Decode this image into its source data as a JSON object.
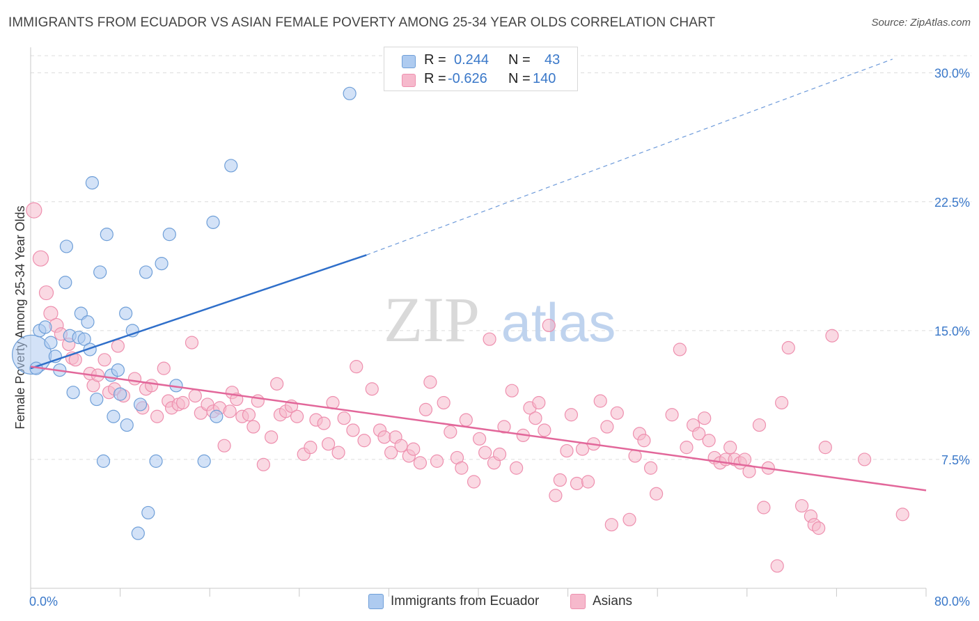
{
  "title": "IMMIGRANTS FROM ECUADOR VS ASIAN FEMALE POVERTY AMONG 25-34 YEAR OLDS CORRELATION CHART",
  "source": "Source: ZipAtlas.com",
  "watermark": {
    "zip": "ZIP",
    "atlas": "atlas"
  },
  "legend_top": {
    "rows": [
      {
        "r_label": "R =",
        "r_value": "0.244",
        "n_label": "N =",
        "n_value": "43",
        "color": "#aecbf0"
      },
      {
        "r_label": "R =",
        "r_value": "-0.626",
        "n_label": "N =",
        "n_value": "140",
        "color": "#f6b9cc"
      }
    ]
  },
  "legend_bottom": {
    "items": [
      {
        "label": "Immigrants from Ecuador",
        "color": "#aecbf0"
      },
      {
        "label": "Asians",
        "color": "#f6b9cc"
      }
    ]
  },
  "colors": {
    "blue_fill": "#aecbf0",
    "blue_stroke": "#6f9fd8",
    "blue_line": "#2f6fca",
    "pink_fill": "#f6b9cc",
    "pink_stroke": "#ee8fae",
    "pink_line": "#e2679a",
    "grid": "#dcdcdc",
    "axis_label": "#3a78c9"
  },
  "chart_data": {
    "type": "scatter",
    "title": "IMMIGRANTS FROM ECUADOR VS ASIAN FEMALE POVERTY AMONG 25-34 YEAR OLDS CORRELATION CHART",
    "xlabel": "",
    "ylabel": "Female Poverty Among 25-34 Year Olds",
    "xlim": [
      0,
      80
    ],
    "ylim": [
      0,
      31
    ],
    "x_tick_labels": [
      "0.0%",
      "80.0%"
    ],
    "y_ticks": [
      7.5,
      15.0,
      22.5,
      30.0
    ],
    "y_tick_labels": [
      "7.5%",
      "15.0%",
      "22.5%",
      "30.0%"
    ],
    "grid": "horizontal dashed",
    "series": [
      {
        "name": "Immigrants from Ecuador",
        "r": 0.244,
        "n": 43,
        "trend": {
          "x0": 0,
          "y0": 12.8,
          "x1": 30.0,
          "y1": 19.4,
          "dashed_to_x": 77.0,
          "dashed_to_y": 30.8
        },
        "points": [
          [
            0.1,
            13.6,
            28
          ],
          [
            0.5,
            12.8,
            9
          ],
          [
            0.8,
            15.0,
            9
          ],
          [
            1.3,
            15.2,
            9
          ],
          [
            1.8,
            14.3,
            9
          ],
          [
            2.2,
            13.5,
            9
          ],
          [
            2.6,
            12.7,
            9
          ],
          [
            3.1,
            17.8,
            9
          ],
          [
            3.2,
            19.9,
            9
          ],
          [
            3.5,
            14.7,
            9
          ],
          [
            3.8,
            11.4,
            9
          ],
          [
            4.3,
            14.6,
            9
          ],
          [
            4.5,
            16.0,
            9
          ],
          [
            4.8,
            14.5,
            9
          ],
          [
            5.1,
            15.5,
            9
          ],
          [
            5.3,
            13.9,
            9
          ],
          [
            5.5,
            23.6,
            9
          ],
          [
            5.9,
            11.0,
            9
          ],
          [
            6.2,
            18.4,
            9
          ],
          [
            6.5,
            7.4,
            9
          ],
          [
            6.8,
            20.6,
            9
          ],
          [
            7.2,
            12.4,
            9
          ],
          [
            7.4,
            10.0,
            9
          ],
          [
            7.8,
            12.7,
            9
          ],
          [
            8.0,
            11.3,
            9
          ],
          [
            8.5,
            16.0,
            9
          ],
          [
            8.6,
            9.5,
            9
          ],
          [
            9.1,
            15.0,
            9
          ],
          [
            9.6,
            3.2,
            9
          ],
          [
            9.8,
            10.7,
            9
          ],
          [
            10.3,
            18.4,
            9
          ],
          [
            10.5,
            4.4,
            9
          ],
          [
            11.2,
            7.4,
            9
          ],
          [
            11.7,
            18.9,
            9
          ],
          [
            12.4,
            20.6,
            9
          ],
          [
            13.0,
            11.8,
            9
          ],
          [
            15.5,
            7.4,
            9
          ],
          [
            16.3,
            21.3,
            9
          ],
          [
            16.6,
            10.0,
            9
          ],
          [
            17.9,
            24.6,
            9
          ],
          [
            28.5,
            28.8,
            9
          ]
        ]
      },
      {
        "name": "Asians",
        "r": -0.626,
        "n": 140,
        "trend": {
          "x0": 0,
          "y0": 12.9,
          "x1": 80.0,
          "y1": 5.7
        },
        "points": [
          [
            0.3,
            22.0,
            11
          ],
          [
            0.9,
            19.2,
            11
          ],
          [
            1.4,
            17.2,
            10
          ],
          [
            1.8,
            16.0,
            10
          ],
          [
            2.3,
            15.3,
            10
          ],
          [
            2.7,
            14.8,
            9
          ],
          [
            3.4,
            14.2,
            9
          ],
          [
            3.7,
            13.4,
            9
          ],
          [
            4.0,
            13.3,
            9
          ],
          [
            5.3,
            12.5,
            9
          ],
          [
            5.6,
            11.8,
            9
          ],
          [
            6.0,
            12.4,
            9
          ],
          [
            6.6,
            13.3,
            9
          ],
          [
            7.0,
            11.4,
            9
          ],
          [
            7.5,
            11.6,
            9
          ],
          [
            7.8,
            14.1,
            9
          ],
          [
            8.3,
            11.2,
            9
          ],
          [
            9.3,
            12.2,
            9
          ],
          [
            10.0,
            10.5,
            9
          ],
          [
            10.3,
            11.6,
            9
          ],
          [
            10.8,
            11.8,
            9
          ],
          [
            11.3,
            10.0,
            9
          ],
          [
            11.9,
            12.8,
            9
          ],
          [
            12.3,
            10.9,
            9
          ],
          [
            12.6,
            10.5,
            9
          ],
          [
            13.2,
            10.7,
            9
          ],
          [
            13.6,
            10.8,
            9
          ],
          [
            14.4,
            14.3,
            9
          ],
          [
            14.7,
            11.2,
            9
          ],
          [
            15.2,
            10.2,
            9
          ],
          [
            15.8,
            10.7,
            9
          ],
          [
            16.3,
            10.3,
            9
          ],
          [
            16.9,
            10.5,
            9
          ],
          [
            17.3,
            8.3,
            9
          ],
          [
            17.8,
            10.3,
            9
          ],
          [
            18.0,
            11.4,
            9
          ],
          [
            18.4,
            11.0,
            9
          ],
          [
            18.9,
            10.0,
            9
          ],
          [
            19.5,
            10.1,
            9
          ],
          [
            19.9,
            9.4,
            9
          ],
          [
            20.3,
            10.9,
            9
          ],
          [
            20.8,
            7.2,
            9
          ],
          [
            21.5,
            8.8,
            9
          ],
          [
            22.0,
            11.9,
            9
          ],
          [
            22.3,
            10.1,
            9
          ],
          [
            22.8,
            10.3,
            9
          ],
          [
            23.3,
            10.6,
            9
          ],
          [
            23.8,
            10.0,
            9
          ],
          [
            24.4,
            7.8,
            9
          ],
          [
            25.0,
            8.2,
            9
          ],
          [
            25.5,
            9.8,
            9
          ],
          [
            26.2,
            9.6,
            9
          ],
          [
            26.6,
            8.4,
            9
          ],
          [
            27.0,
            10.8,
            9
          ],
          [
            27.5,
            7.9,
            9
          ],
          [
            28.0,
            9.9,
            9
          ],
          [
            28.8,
            9.2,
            9
          ],
          [
            29.1,
            12.9,
            9
          ],
          [
            29.8,
            8.6,
            9
          ],
          [
            30.5,
            11.6,
            9
          ],
          [
            31.2,
            9.2,
            9
          ],
          [
            31.6,
            8.8,
            9
          ],
          [
            32.2,
            7.9,
            9
          ],
          [
            32.6,
            8.8,
            9
          ],
          [
            33.1,
            8.3,
            9
          ],
          [
            33.8,
            7.7,
            9
          ],
          [
            34.2,
            8.1,
            9
          ],
          [
            34.8,
            7.3,
            9
          ],
          [
            35.3,
            10.4,
            9
          ],
          [
            35.7,
            12.0,
            9
          ],
          [
            36.3,
            7.4,
            9
          ],
          [
            36.9,
            10.8,
            9
          ],
          [
            37.5,
            9.1,
            9
          ],
          [
            38.1,
            7.6,
            9
          ],
          [
            38.5,
            7.0,
            9
          ],
          [
            38.9,
            9.8,
            9
          ],
          [
            39.6,
            6.2,
            9
          ],
          [
            40.1,
            8.7,
            9
          ],
          [
            40.6,
            7.9,
            9
          ],
          [
            41.0,
            14.5,
            9
          ],
          [
            41.4,
            7.3,
            9
          ],
          [
            41.9,
            7.8,
            9
          ],
          [
            42.3,
            9.4,
            9
          ],
          [
            43.0,
            11.5,
            9
          ],
          [
            43.4,
            7.0,
            9
          ],
          [
            44.0,
            8.9,
            9
          ],
          [
            44.6,
            10.5,
            9
          ],
          [
            45.1,
            9.9,
            9
          ],
          [
            45.4,
            10.8,
            9
          ],
          [
            45.9,
            9.2,
            9
          ],
          [
            46.3,
            15.3,
            9
          ],
          [
            46.9,
            5.4,
            9
          ],
          [
            47.3,
            6.3,
            9
          ],
          [
            47.9,
            8.0,
            9
          ],
          [
            48.3,
            10.1,
            9
          ],
          [
            48.8,
            6.1,
            9
          ],
          [
            49.3,
            8.1,
            9
          ],
          [
            49.8,
            6.2,
            9
          ],
          [
            50.3,
            8.4,
            9
          ],
          [
            50.9,
            10.9,
            9
          ],
          [
            51.5,
            9.4,
            9
          ],
          [
            51.9,
            3.7,
            9
          ],
          [
            52.4,
            10.2,
            9
          ],
          [
            53.5,
            4.0,
            9
          ],
          [
            54.0,
            7.7,
            9
          ],
          [
            54.4,
            9.0,
            9
          ],
          [
            54.8,
            8.6,
            9
          ],
          [
            55.4,
            7.0,
            9
          ],
          [
            55.9,
            5.5,
            9
          ],
          [
            57.3,
            10.1,
            9
          ],
          [
            58.0,
            13.9,
            9
          ],
          [
            58.6,
            8.2,
            9
          ],
          [
            59.2,
            9.5,
            9
          ],
          [
            59.7,
            9.0,
            9
          ],
          [
            60.2,
            9.9,
            9
          ],
          [
            60.6,
            8.6,
            9
          ],
          [
            61.1,
            7.6,
            9
          ],
          [
            61.6,
            7.3,
            9
          ],
          [
            62.1,
            7.5,
            9
          ],
          [
            62.5,
            8.2,
            9
          ],
          [
            62.9,
            7.5,
            9
          ],
          [
            63.4,
            7.3,
            9
          ],
          [
            63.8,
            7.5,
            9
          ],
          [
            64.2,
            6.8,
            9
          ],
          [
            65.1,
            9.5,
            9
          ],
          [
            65.5,
            4.7,
            9
          ],
          [
            65.9,
            7.0,
            9
          ],
          [
            66.7,
            1.3,
            9
          ],
          [
            67.1,
            10.8,
            9
          ],
          [
            67.7,
            14.0,
            9
          ],
          [
            68.9,
            4.8,
            9
          ],
          [
            69.7,
            4.2,
            9
          ],
          [
            70.0,
            3.7,
            9
          ],
          [
            70.4,
            3.5,
            9
          ],
          [
            71.0,
            8.2,
            9
          ],
          [
            71.6,
            14.7,
            9
          ],
          [
            74.5,
            7.5,
            9
          ],
          [
            77.9,
            4.3,
            9
          ]
        ]
      }
    ]
  }
}
